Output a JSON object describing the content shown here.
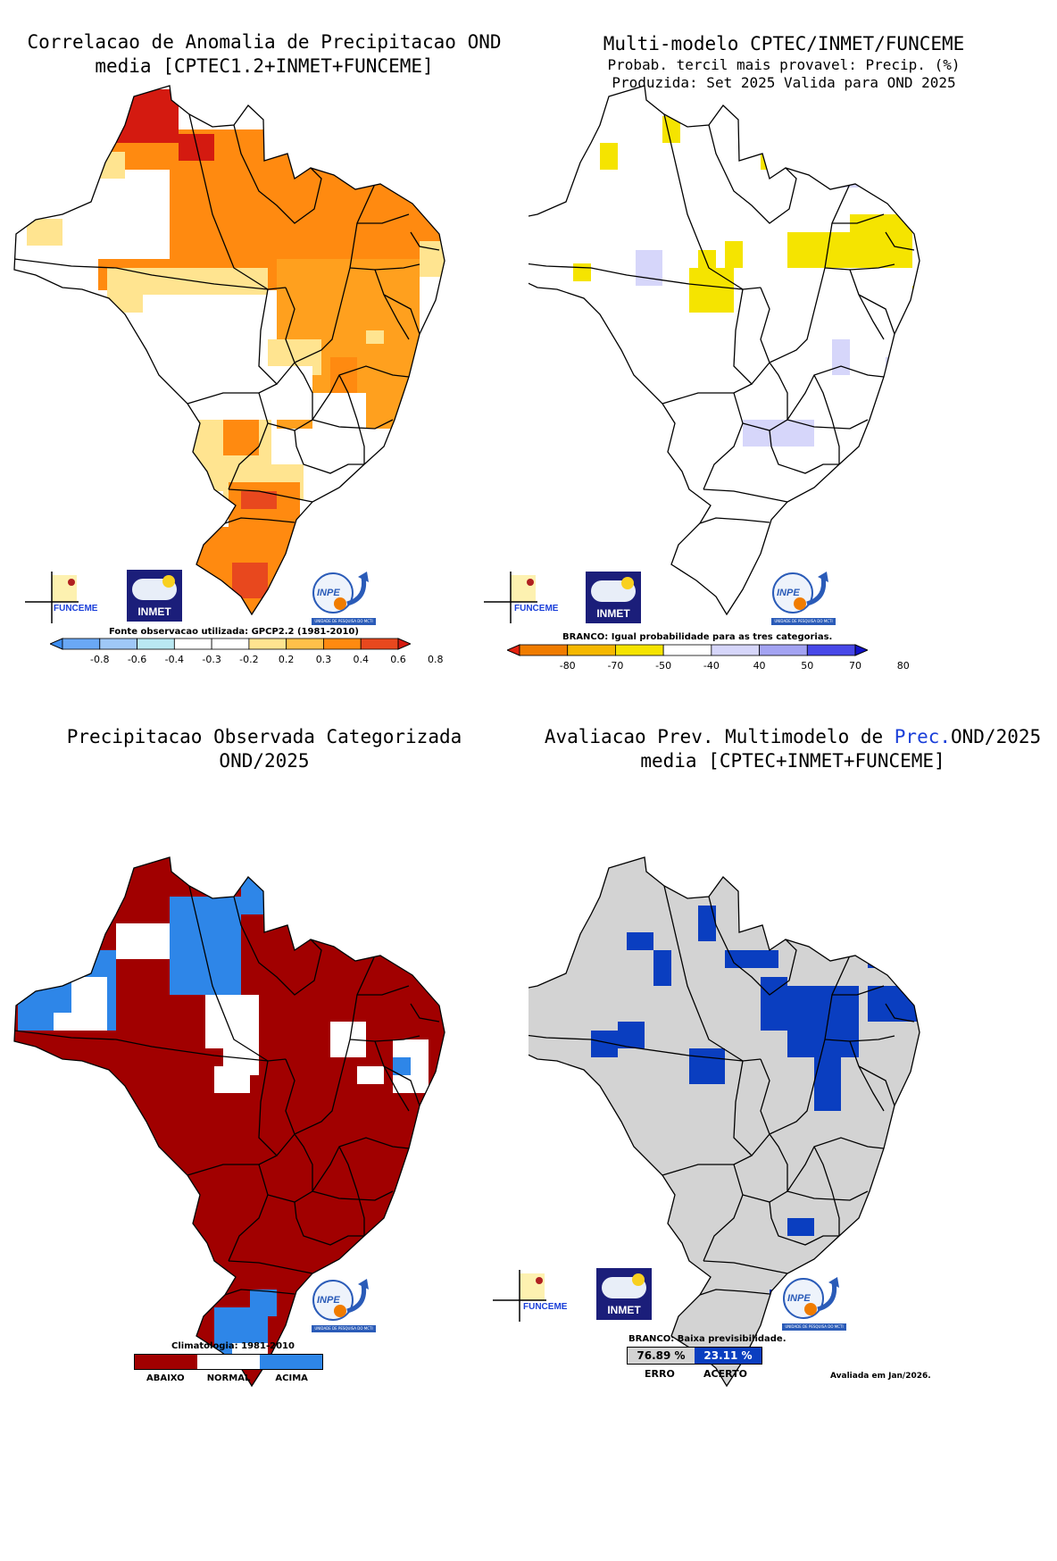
{
  "panels": {
    "p1": {
      "title_line1": "Correlacao de Anomalia de Precipitacao OND",
      "title_line2": "media [CPTEC1.2+INMET+FUNCEME]",
      "obs_note": "Fonte observacao utilizada: GPCP2.2 (1981-2010)",
      "colorbar_labels": [
        "-0.8",
        "-0.6",
        "-0.4",
        "-0.3",
        "-0.2",
        "0.2",
        "0.3",
        "0.4",
        "0.6",
        "0.8"
      ],
      "colorbar_colors": [
        "#3d8df0",
        "#6aa8f5",
        "#9fc8f7",
        "#b9e8f2",
        "#ffffff",
        "#ffffff",
        "#ffe490",
        "#ffc04a",
        "#ff8a10",
        "#e8481e",
        "#d41a10"
      ]
    },
    "p2": {
      "title_line1": "Multi-modelo CPTEC/INMET/FUNCEME",
      "title_line2": "Probab. tercil mais provavel: Precip. (%)",
      "title_line3": "Produzida: Set 2025  Valida para OND 2025",
      "branco_note": "BRANCO: Igual probabilidade para as tres categorias.",
      "colorbar_labels": [
        "-80",
        "-70",
        "-50",
        "-40",
        "40",
        "50",
        "70",
        "80"
      ],
      "colorbar_colors": [
        "#e52310",
        "#f07c00",
        "#f5b800",
        "#f5e400",
        "#ffffff",
        "#d6d6fa",
        "#a3a3f2",
        "#4848e8",
        "#1212c8"
      ]
    },
    "p3": {
      "title_line1": "Precipitacao Observada Categorizada",
      "title_line2": "OND/2025",
      "clim_note": "Climatologia: 1981-2010",
      "legend": [
        {
          "label": "ABAIXO",
          "color": "#a10000"
        },
        {
          "label": "NORMAL",
          "color": "#ffffff"
        },
        {
          "label": "ACIMA",
          "color": "#2e86e8"
        }
      ]
    },
    "p4": {
      "title_line1_a": "Avaliacao Prev. Multimodelo de ",
      "title_line1_b": "Prec.",
      "title_line1_c": "OND/2025",
      "title_line2": "media [CPTEC+INMET+FUNCEME]",
      "branco_note": "BRANCO: Baixa previsibilidade.",
      "erro_value": "76.89 %",
      "acerto_value": "23.11 %",
      "erro_label": "ERRO",
      "acerto_label": "ACERTO",
      "evaluated": "Avaliada em Jan/2026.",
      "erro_color": "#d3d3d3",
      "acerto_color": "#0a3ec0"
    }
  },
  "logos": {
    "funceme": "FUNCEME",
    "inmet": "INMET",
    "inpe": "INPE",
    "inpe_caption": "UNIDADE DE PESQUISA DO MCTI"
  }
}
